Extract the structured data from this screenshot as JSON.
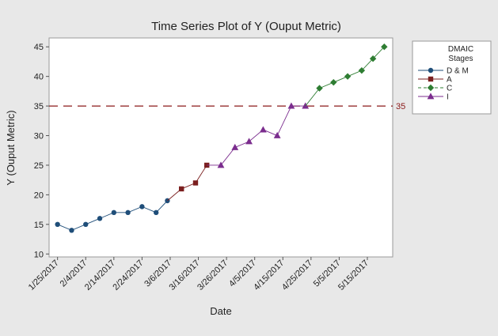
{
  "chart_data": {
    "type": "line",
    "title": "Time Series Plot of Y (Ouput Metric)",
    "xlabel": "Date",
    "ylabel": "Y (Ouput Metric)",
    "ylim": [
      9.5,
      46.5
    ],
    "yticks": [
      10,
      15,
      20,
      25,
      30,
      35,
      40,
      45
    ],
    "xlim": [
      "2017-01-22",
      "2017-05-24"
    ],
    "xtick_labels": [
      "1/25/2017",
      "2/4/2017",
      "2/14/2017",
      "2/24/2017",
      "3/6/2017",
      "3/16/2017",
      "3/26/2017",
      "4/5/2017",
      "4/15/2017",
      "4/25/2017",
      "5/5/2017",
      "5/15/2017"
    ],
    "xtick_dates": [
      "2017-01-25",
      "2017-02-04",
      "2017-02-14",
      "2017-02-24",
      "2017-03-06",
      "2017-03-16",
      "2017-03-26",
      "2017-04-05",
      "2017-04-15",
      "2017-04-25",
      "2017-05-05",
      "2017-05-15"
    ],
    "grid": false,
    "legend": {
      "title_lines": [
        "DMAIC",
        "Stages"
      ],
      "placement": "right"
    },
    "reference_line": {
      "y": 35,
      "label": "35",
      "color": "#8b1a1a",
      "style": "dashed"
    },
    "series": [
      {
        "name": "D & M",
        "marker": "circle",
        "color": "#1f4e79",
        "points": [
          {
            "x": "2017-01-25",
            "y": 15
          },
          {
            "x": "2017-01-30",
            "y": 14
          },
          {
            "x": "2017-02-04",
            "y": 15
          },
          {
            "x": "2017-02-09",
            "y": 16
          },
          {
            "x": "2017-02-14",
            "y": 17
          },
          {
            "x": "2017-02-19",
            "y": 17
          },
          {
            "x": "2017-02-24",
            "y": 18
          },
          {
            "x": "2017-03-01",
            "y": 17
          },
          {
            "x": "2017-03-05",
            "y": 19
          }
        ]
      },
      {
        "name": "A",
        "marker": "square",
        "color": "#7b1f1f",
        "points": [
          {
            "x": "2017-03-10",
            "y": 21
          },
          {
            "x": "2017-03-15",
            "y": 22
          },
          {
            "x": "2017-03-19",
            "y": 25
          }
        ]
      },
      {
        "name": "I",
        "marker": "triangle",
        "color": "#7b2d8e",
        "points": [
          {
            "x": "2017-03-24",
            "y": 25
          },
          {
            "x": "2017-03-29",
            "y": 28
          },
          {
            "x": "2017-04-03",
            "y": 29
          },
          {
            "x": "2017-04-08",
            "y": 31
          },
          {
            "x": "2017-04-13",
            "y": 30
          },
          {
            "x": "2017-04-18",
            "y": 35
          },
          {
            "x": "2017-04-23",
            "y": 35
          }
        ]
      },
      {
        "name": "C",
        "marker": "diamond",
        "color": "#2e7d32",
        "points": [
          {
            "x": "2017-04-28",
            "y": 38
          },
          {
            "x": "2017-05-03",
            "y": 39
          },
          {
            "x": "2017-05-08",
            "y": 40
          },
          {
            "x": "2017-05-13",
            "y": 41
          },
          {
            "x": "2017-05-17",
            "y": 43
          },
          {
            "x": "2017-05-21",
            "y": 45
          }
        ]
      }
    ],
    "legend_order": [
      "D & M",
      "A",
      "C",
      "I"
    ]
  }
}
